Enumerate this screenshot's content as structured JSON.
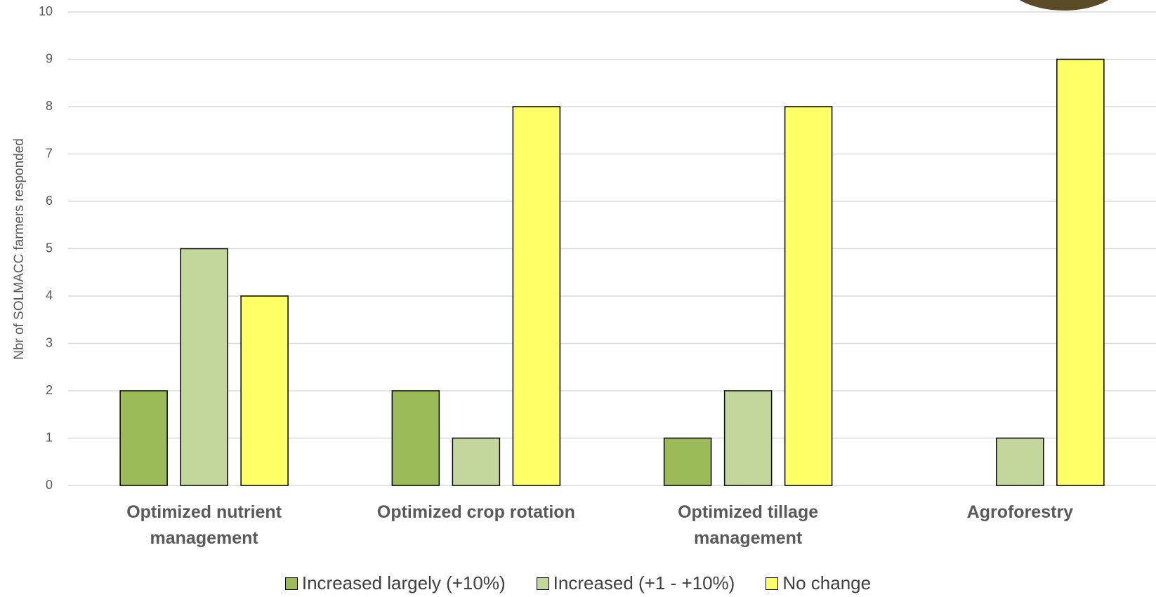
{
  "chart_data": {
    "type": "bar",
    "y_label": "Nbr of SOLMACC farmers responded",
    "categories": [
      "Optimized nutrient management",
      "Optimized crop rotation",
      "Optimized tillage management",
      "Agroforestry"
    ],
    "series": [
      {
        "name": "Increased largely (+10%)",
        "color": "#9bbb59",
        "values": [
          2,
          2,
          1,
          0
        ]
      },
      {
        "name": "Increased (+1 - +10%)",
        "color": "#c3d69b",
        "values": [
          5,
          1,
          2,
          1
        ]
      },
      {
        "name": "No change",
        "color": "#ffff66",
        "values": [
          4,
          8,
          8,
          9
        ]
      }
    ],
    "ylim": [
      0,
      10
    ],
    "yticks": [
      0,
      1,
      2,
      3,
      4,
      5,
      6,
      7,
      8,
      9,
      10
    ],
    "grid": true,
    "legend": "bottom"
  }
}
